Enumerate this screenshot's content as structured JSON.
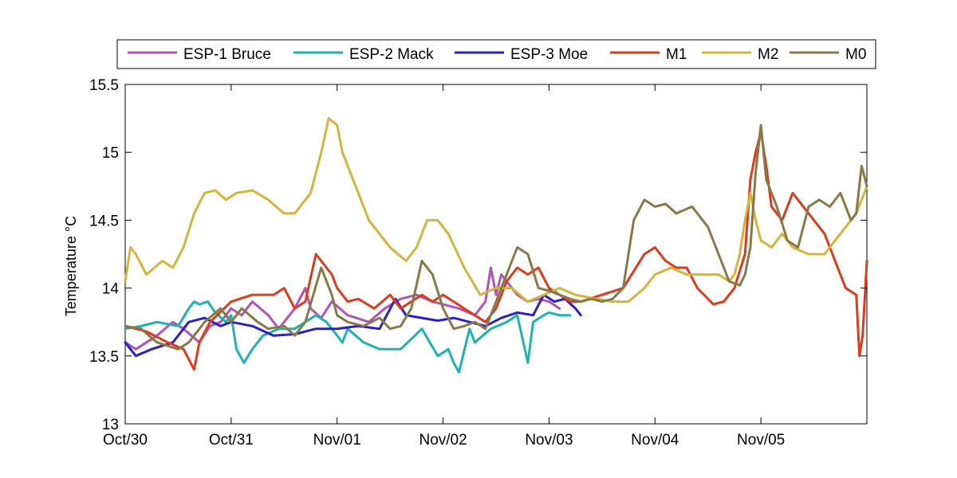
{
  "chart_data": {
    "type": "line",
    "title": "",
    "xlabel": "",
    "ylabel": "Temperature °C",
    "ylim": [
      13,
      15.5
    ],
    "xlim": [
      0,
      7
    ],
    "x_unit": "days since Oct/30",
    "x_ticks": [
      {
        "value": 0,
        "label": "Oct/30"
      },
      {
        "value": 1,
        "label": "Oct/31"
      },
      {
        "value": 2,
        "label": "Nov/01"
      },
      {
        "value": 3,
        "label": "Nov/02"
      },
      {
        "value": 4,
        "label": "Nov/03"
      },
      {
        "value": 5,
        "label": "Nov/04"
      },
      {
        "value": 6,
        "label": "Nov/05"
      }
    ],
    "y_ticks": [
      {
        "value": 13,
        "label": "13"
      },
      {
        "value": 13.5,
        "label": "13.5"
      },
      {
        "value": 14,
        "label": "14"
      },
      {
        "value": 14.5,
        "label": "14.5"
      },
      {
        "value": 15,
        "label": "15"
      },
      {
        "value": 15.5,
        "label": "15.5"
      }
    ],
    "grid": false,
    "legend_position": "top",
    "series": [
      {
        "name": "ESP-1 Bruce",
        "color": "#b054b8",
        "x": [
          0,
          0.1,
          0.2,
          0.3,
          0.45,
          0.55,
          0.7,
          0.8,
          0.9,
          1.0,
          1.1,
          1.2,
          1.35,
          1.45,
          1.6,
          1.7,
          1.75,
          1.85,
          1.95,
          2.1,
          2.3,
          2.45,
          2.6,
          2.75,
          2.9,
          3.0,
          3.15,
          3.3,
          3.4,
          3.45,
          3.5,
          3.55,
          3.6,
          3.7,
          3.8,
          3.9,
          4.0,
          4.1
        ],
        "y": [
          13.6,
          13.55,
          13.6,
          13.65,
          13.75,
          13.7,
          13.6,
          13.72,
          13.75,
          13.85,
          13.8,
          13.9,
          13.8,
          13.7,
          13.85,
          14.0,
          13.85,
          13.78,
          13.9,
          13.8,
          13.75,
          13.85,
          13.92,
          13.95,
          13.9,
          13.88,
          13.85,
          13.8,
          13.9,
          14.15,
          13.95,
          14.1,
          14.05,
          13.95,
          13.9,
          13.92,
          13.9,
          13.85
        ]
      },
      {
        "name": "ESP-2 Mack",
        "color": "#1eb2b2",
        "x": [
          0,
          0.15,
          0.3,
          0.5,
          0.6,
          0.65,
          0.7,
          0.78,
          0.85,
          0.95,
          1.0,
          1.05,
          1.12,
          1.2,
          1.3,
          1.45,
          1.6,
          1.7,
          1.8,
          1.9,
          2.0,
          2.05,
          2.1,
          2.25,
          2.4,
          2.6,
          2.8,
          2.95,
          3.05,
          3.1,
          3.15,
          3.25,
          3.3,
          3.45,
          3.6,
          3.7,
          3.8,
          3.85,
          3.95,
          4.0,
          4.1,
          4.2
        ],
        "y": [
          13.7,
          13.72,
          13.75,
          13.72,
          13.85,
          13.9,
          13.88,
          13.9,
          13.82,
          13.75,
          13.8,
          13.55,
          13.45,
          13.55,
          13.65,
          13.7,
          13.7,
          13.75,
          13.8,
          13.75,
          13.65,
          13.6,
          13.7,
          13.6,
          13.55,
          13.55,
          13.7,
          13.5,
          13.55,
          13.45,
          13.38,
          13.7,
          13.6,
          13.7,
          13.75,
          13.8,
          13.45,
          13.75,
          13.8,
          13.82,
          13.8,
          13.8
        ]
      },
      {
        "name": "ESP-3 Moe",
        "color": "#2a1fc8",
        "x": [
          0,
          0.1,
          0.25,
          0.45,
          0.6,
          0.75,
          0.9,
          1.0,
          1.2,
          1.4,
          1.6,
          1.8,
          2.0,
          2.2,
          2.4,
          2.55,
          2.65,
          2.8,
          2.95,
          3.1,
          3.25,
          3.4,
          3.55,
          3.7,
          3.85,
          3.95,
          4.05,
          4.15,
          4.25,
          4.3
        ],
        "y": [
          13.6,
          13.5,
          13.55,
          13.6,
          13.75,
          13.78,
          13.72,
          13.75,
          13.72,
          13.65,
          13.66,
          13.7,
          13.7,
          13.72,
          13.7,
          13.92,
          13.8,
          13.78,
          13.76,
          13.78,
          13.75,
          13.72,
          13.78,
          13.82,
          13.8,
          13.95,
          13.9,
          13.92,
          13.85,
          13.8
        ]
      },
      {
        "name": "M1",
        "color": "#e03a1c",
        "x": [
          0,
          0.2,
          0.4,
          0.55,
          0.65,
          0.7,
          0.8,
          1.0,
          1.2,
          1.4,
          1.5,
          1.6,
          1.7,
          1.8,
          1.9,
          1.95,
          2.0,
          2.1,
          2.2,
          2.35,
          2.5,
          2.6,
          2.8,
          2.9,
          3.0,
          3.2,
          3.4,
          3.5,
          3.6,
          3.7,
          3.8,
          3.9,
          4.0,
          4.1,
          4.2,
          4.3,
          4.5,
          4.7,
          4.9,
          5.0,
          5.1,
          5.2,
          5.3,
          5.4,
          5.55,
          5.65,
          5.75,
          5.85,
          5.9,
          5.95,
          6.0,
          6.05,
          6.1,
          6.2,
          6.3,
          6.4,
          6.5,
          6.6,
          6.7,
          6.8,
          6.9,
          6.93,
          6.96,
          7.0
        ],
        "y": [
          13.72,
          13.68,
          13.6,
          13.55,
          13.4,
          13.6,
          13.75,
          13.9,
          13.95,
          13.95,
          14.0,
          13.85,
          13.9,
          14.25,
          14.15,
          14.1,
          14.0,
          13.9,
          13.92,
          13.85,
          13.95,
          13.85,
          13.95,
          13.9,
          13.95,
          13.85,
          13.75,
          13.85,
          14.05,
          14.15,
          14.1,
          14.15,
          14.0,
          13.95,
          13.9,
          13.9,
          13.95,
          14.0,
          14.25,
          14.3,
          14.2,
          14.15,
          14.15,
          14.0,
          13.88,
          13.9,
          14.0,
          14.25,
          14.8,
          15.0,
          15.15,
          14.9,
          14.6,
          14.5,
          14.7,
          14.6,
          14.5,
          14.4,
          14.2,
          14.0,
          13.95,
          13.5,
          13.65,
          14.2
        ]
      },
      {
        "name": "M2",
        "color": "#d4b43a",
        "x": [
          0,
          0.05,
          0.1,
          0.2,
          0.35,
          0.45,
          0.55,
          0.65,
          0.75,
          0.85,
          0.95,
          1.05,
          1.2,
          1.35,
          1.5,
          1.6,
          1.75,
          1.85,
          1.92,
          2.0,
          2.05,
          2.15,
          2.3,
          2.5,
          2.65,
          2.75,
          2.85,
          2.95,
          3.05,
          3.2,
          3.35,
          3.5,
          3.65,
          3.8,
          3.95,
          4.1,
          4.25,
          4.45,
          4.6,
          4.75,
          4.9,
          5.0,
          5.15,
          5.3,
          5.45,
          5.6,
          5.7,
          5.75,
          5.8,
          5.85,
          5.9,
          5.95,
          6.0,
          6.1,
          6.2,
          6.3,
          6.45,
          6.6,
          6.75,
          6.9,
          7.0
        ],
        "y": [
          14.05,
          14.3,
          14.25,
          14.1,
          14.2,
          14.15,
          14.3,
          14.55,
          14.7,
          14.72,
          14.65,
          14.7,
          14.72,
          14.65,
          14.55,
          14.55,
          14.7,
          15.0,
          15.25,
          15.2,
          15.0,
          14.8,
          14.5,
          14.3,
          14.2,
          14.3,
          14.5,
          14.5,
          14.4,
          14.15,
          13.95,
          14.0,
          14.0,
          13.9,
          13.95,
          14.0,
          13.95,
          13.92,
          13.9,
          13.9,
          14.0,
          14.1,
          14.15,
          14.1,
          14.1,
          14.1,
          14.05,
          14.1,
          14.25,
          14.5,
          14.7,
          14.5,
          14.35,
          14.3,
          14.4,
          14.3,
          14.25,
          14.25,
          14.4,
          14.55,
          14.75
        ]
      },
      {
        "name": "M0",
        "color": "#867a48",
        "x": [
          0,
          0.15,
          0.3,
          0.5,
          0.6,
          0.75,
          0.9,
          1.0,
          1.1,
          1.25,
          1.35,
          1.5,
          1.6,
          1.7,
          1.85,
          1.95,
          2.0,
          2.1,
          2.25,
          2.4,
          2.5,
          2.6,
          2.7,
          2.8,
          2.9,
          3.0,
          3.1,
          3.2,
          3.3,
          3.4,
          3.5,
          3.6,
          3.7,
          3.8,
          3.9,
          4.0,
          4.1,
          4.2,
          4.3,
          4.4,
          4.5,
          4.6,
          4.7,
          4.8,
          4.9,
          5.0,
          5.1,
          5.2,
          5.35,
          5.5,
          5.6,
          5.7,
          5.8,
          5.85,
          5.9,
          5.95,
          6.0,
          6.05,
          6.15,
          6.25,
          6.35,
          6.45,
          6.55,
          6.65,
          6.75,
          6.85,
          6.9,
          6.95,
          7.0
        ],
        "y": [
          13.72,
          13.7,
          13.6,
          13.55,
          13.6,
          13.75,
          13.85,
          13.75,
          13.85,
          13.75,
          13.7,
          13.72,
          13.65,
          13.75,
          14.15,
          13.95,
          13.8,
          13.75,
          13.72,
          13.78,
          13.7,
          13.72,
          13.85,
          14.2,
          14.1,
          13.85,
          13.7,
          13.72,
          13.75,
          13.7,
          13.9,
          14.1,
          14.3,
          14.25,
          14.0,
          13.98,
          13.95,
          13.92,
          13.9,
          13.92,
          13.9,
          13.92,
          14.0,
          14.5,
          14.65,
          14.6,
          14.62,
          14.55,
          14.6,
          14.45,
          14.25,
          14.05,
          14.02,
          14.1,
          14.3,
          14.85,
          15.2,
          14.8,
          14.6,
          14.35,
          14.3,
          14.6,
          14.65,
          14.6,
          14.7,
          14.5,
          14.55,
          14.9,
          14.75
        ]
      }
    ]
  }
}
